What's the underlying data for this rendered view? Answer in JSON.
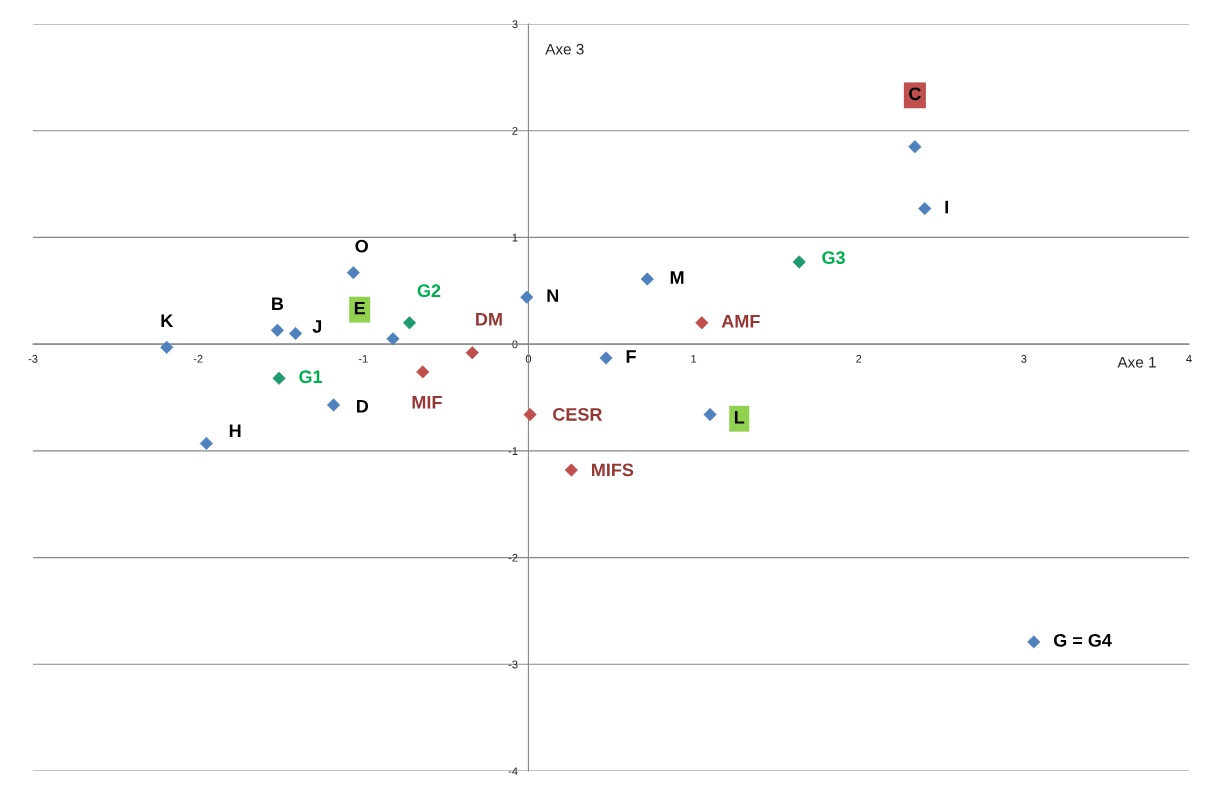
{
  "chart_data": {
    "type": "scatter",
    "xlabel": "Axe 1",
    "ylabel": "Axe 3",
    "marker": "diamond",
    "grid": "y",
    "legend": false,
    "xlim": [
      -3,
      4
    ],
    "ylim": [
      -4,
      3
    ],
    "xticks": [
      -3,
      -2,
      -1,
      0,
      1,
      2,
      3,
      4
    ],
    "yticks": [
      -4,
      -3,
      -2,
      -1,
      0,
      1,
      2,
      3
    ],
    "series": [
      {
        "color": "#4f81bd",
        "x": [
          -2.19,
          -1.52,
          -1.41,
          -1.06,
          -0.01,
          -1.18,
          -1.95,
          0.47,
          0.72,
          2.4,
          3.06
        ],
        "values": [
          -0.03,
          0.13,
          0.1,
          0.67,
          0.44,
          -0.57,
          -0.93,
          -0.13,
          0.61,
          1.27,
          -2.79
        ],
        "value_labels": [
          "K",
          "B",
          "J",
          "O",
          "N",
          "D",
          "H",
          "F",
          "M",
          "I",
          "G = G4"
        ]
      },
      {
        "color": "#4f81bd",
        "x": [
          -0.82,
          1.1
        ],
        "values": [
          0.05,
          -0.66
        ],
        "value_labels": [
          "E",
          "L"
        ]
      },
      {
        "color": "#4f81bd",
        "x": [
          2.34
        ],
        "values": [
          1.85
        ],
        "value_labels": [
          "C"
        ]
      },
      {
        "color": "#1f9b6e",
        "x": [
          -1.51,
          -0.72,
          1.64
        ],
        "values": [
          -0.32,
          0.2,
          0.77
        ],
        "value_labels": [
          "G1",
          "G2",
          "G3"
        ]
      },
      {
        "color": "#c0504d",
        "x": [
          -0.64,
          -0.34,
          0.01,
          0.26,
          1.05
        ],
        "values": [
          -0.26,
          -0.08,
          -0.66,
          -1.18,
          0.2
        ],
        "value_labels": [
          "MIF",
          "DM",
          "CESR",
          "MIFS",
          "AMF"
        ]
      }
    ]
  }
}
